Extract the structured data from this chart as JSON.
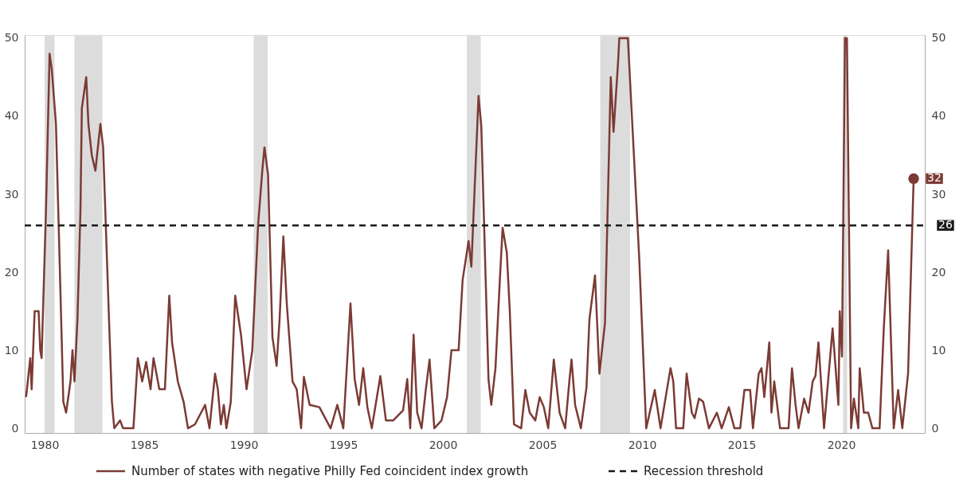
{
  "chart_data": {
    "type": "line",
    "x": [
      1979.07,
      1979.28,
      1979.35,
      1979.5,
      1979.7,
      1979.78,
      1979.85,
      1980.07,
      1980.25,
      1980.36,
      1980.57,
      1980.8,
      1980.94,
      1981.08,
      1981.3,
      1981.4,
      1981.5,
      1981.65,
      1981.8,
      1981.87,
      1982.09,
      1982.2,
      1982.37,
      1982.55,
      1982.8,
      1982.94,
      1983.24,
      1983.38,
      1983.5,
      1983.79,
      1983.94,
      1984.46,
      1984.68,
      1984.9,
      1985.1,
      1985.32,
      1985.47,
      1985.76,
      1986.04,
      1986.26,
      1986.4,
      1986.69,
      1986.98,
      1987.2,
      1987.55,
      1988.06,
      1988.28,
      1988.56,
      1988.7,
      1988.85,
      1989.0,
      1989.13,
      1989.35,
      1989.57,
      1989.86,
      1990.14,
      1990.43,
      1990.72,
      1990.93,
      1991.04,
      1991.22,
      1991.44,
      1991.65,
      1991.8,
      1991.99,
      1992.16,
      1992.45,
      1992.66,
      1992.88,
      1993.02,
      1993.31,
      1993.8,
      1994.36,
      1994.7,
      1995.0,
      1995.36,
      1995.57,
      1995.79,
      1996.0,
      1996.21,
      1996.43,
      1996.86,
      1997.14,
      1997.5,
      1998.0,
      1998.21,
      1998.36,
      1998.53,
      1998.71,
      1998.93,
      1999.14,
      1999.33,
      1999.57,
      1999.93,
      2000.21,
      2000.43,
      2000.79,
      2000.99,
      2001.29,
      2001.43,
      2001.79,
      2001.93,
      2002.29,
      2002.43,
      2002.64,
      2002.86,
      2003.0,
      2003.21,
      2003.36,
      2003.57,
      2003.93,
      2004.14,
      2004.36,
      2004.64,
      2004.86,
      2005.07,
      2005.29,
      2005.57,
      2005.86,
      2006.14,
      2006.36,
      2006.46,
      2006.64,
      2006.93,
      2007.21,
      2007.36,
      2007.64,
      2007.86,
      2008.14,
      2008.43,
      2008.57,
      2008.79,
      2008.86,
      2009.29,
      2009.43,
      2009.86,
      2010.21,
      2010.64,
      2010.93,
      2011.43,
      2011.57,
      2011.71,
      2012.07,
      2012.24,
      2012.5,
      2012.64,
      2012.86,
      2013.07,
      2013.36,
      2013.76,
      2014.0,
      2014.36,
      2014.64,
      2014.93,
      2015.14,
      2015.43,
      2015.57,
      2015.86,
      2016.0,
      2016.14,
      2016.39,
      2016.5,
      2016.64,
      2016.93,
      2017.36,
      2017.53,
      2017.71,
      2017.86,
      2018.14,
      2018.36,
      2018.57,
      2018.71,
      2018.86,
      2019.14,
      2019.57,
      2019.86,
      2019.93,
      2020.04,
      2020.19,
      2020.29,
      2020.5,
      2020.64,
      2020.86,
      2020.93,
      2021.14,
      2021.36,
      2021.57,
      2021.93,
      2022.14,
      2022.36,
      2022.64,
      2022.86,
      2023.07,
      2023.36,
      2023.64
    ],
    "series": [
      {
        "name": "Number of states with negative Philly Fed coincident index growth",
        "color": "#7b3b34",
        "values": [
          4,
          9,
          5,
          15,
          15,
          10,
          9,
          28,
          48,
          46,
          39,
          17,
          3.4,
          2,
          6,
          10,
          6,
          14,
          28,
          41,
          45,
          39,
          35,
          33,
          39,
          36,
          13.5,
          3.4,
          0,
          1,
          0,
          0,
          9,
          6,
          8.5,
          5,
          9,
          5,
          5,
          17,
          11,
          6,
          3.4,
          0,
          0.5,
          3,
          0,
          7,
          5,
          0.5,
          3,
          0,
          3.4,
          17,
          12,
          5,
          10,
          26,
          33,
          36,
          32.5,
          11.7,
          8,
          14,
          24.6,
          16,
          6,
          5,
          0,
          6.6,
          3,
          2.7,
          0,
          3,
          0,
          16,
          6.3,
          3,
          7.7,
          2.7,
          0,
          6.7,
          1,
          1,
          2.3,
          6.3,
          0,
          12,
          2,
          0,
          4.9,
          8.8,
          0,
          1,
          4,
          10,
          10,
          19,
          24,
          20.7,
          42.6,
          38.7,
          6.3,
          3,
          7.7,
          19,
          25.7,
          22.5,
          15,
          0.5,
          0,
          4.9,
          2,
          1,
          4,
          2.7,
          0,
          8.8,
          2,
          0,
          6.3,
          8.8,
          3,
          0,
          5.2,
          14,
          19.6,
          7,
          13.5,
          45,
          38,
          46.6,
          50,
          50,
          43,
          21.8,
          0,
          4.9,
          0,
          7.7,
          6,
          0,
          0,
          7,
          2,
          1.3,
          3.8,
          3.4,
          0,
          2,
          0,
          2.7,
          0,
          0,
          4.9,
          4.9,
          0,
          7,
          7.7,
          4,
          11,
          2,
          6,
          0,
          0,
          7.7,
          3,
          0,
          3.8,
          2,
          6,
          6.7,
          11,
          0,
          12.8,
          3,
          15,
          9.2,
          50,
          50,
          0,
          3.8,
          0,
          7.7,
          2,
          2,
          0,
          0,
          12.8,
          22.8,
          0,
          4.9,
          0,
          7,
          32
        ]
      }
    ],
    "xlim": [
      1979.0,
      2024.2
    ],
    "xticks": [
      1980,
      1985,
      1990,
      1995,
      2000,
      2005,
      2010,
      2015,
      2020
    ],
    "ylim": [
      -0.6,
      50.4
    ],
    "yticks": [
      0,
      10,
      20,
      30,
      40,
      50
    ],
    "y2lim": [
      -0.6,
      50.4
    ],
    "y2ticks": [
      0,
      10,
      20,
      30,
      40,
      50
    ],
    "bands": [
      {
        "axis": "x",
        "from": 1980.0,
        "to": 1980.5,
        "color": "#dcdcdc"
      },
      {
        "axis": "x",
        "from": 1981.5,
        "to": 1982.9,
        "color": "#dcdcdc"
      },
      {
        "axis": "x",
        "from": 1990.5,
        "to": 1991.2,
        "color": "#dcdcdc"
      },
      {
        "axis": "x",
        "from": 2001.2,
        "to": 2001.9,
        "color": "#dcdcdc"
      },
      {
        "axis": "x",
        "from": 2007.9,
        "to": 2009.4,
        "color": "#dcdcdc"
      },
      {
        "axis": "x",
        "from": 2020.1,
        "to": 2020.3,
        "color": "#dcdcdc"
      }
    ],
    "ref_lines": [
      {
        "axis": "y",
        "value": 26,
        "label": "Recession threshold",
        "color": "#1a1a1a",
        "line_style": "dashed"
      }
    ],
    "annotations": [
      {
        "text": "32",
        "x": 2023.64,
        "y": 32
      },
      {
        "text": "26",
        "x": 2024.2,
        "y": 26
      }
    ],
    "legend": "bottom",
    "grid": false,
    "line_style": "solid"
  }
}
